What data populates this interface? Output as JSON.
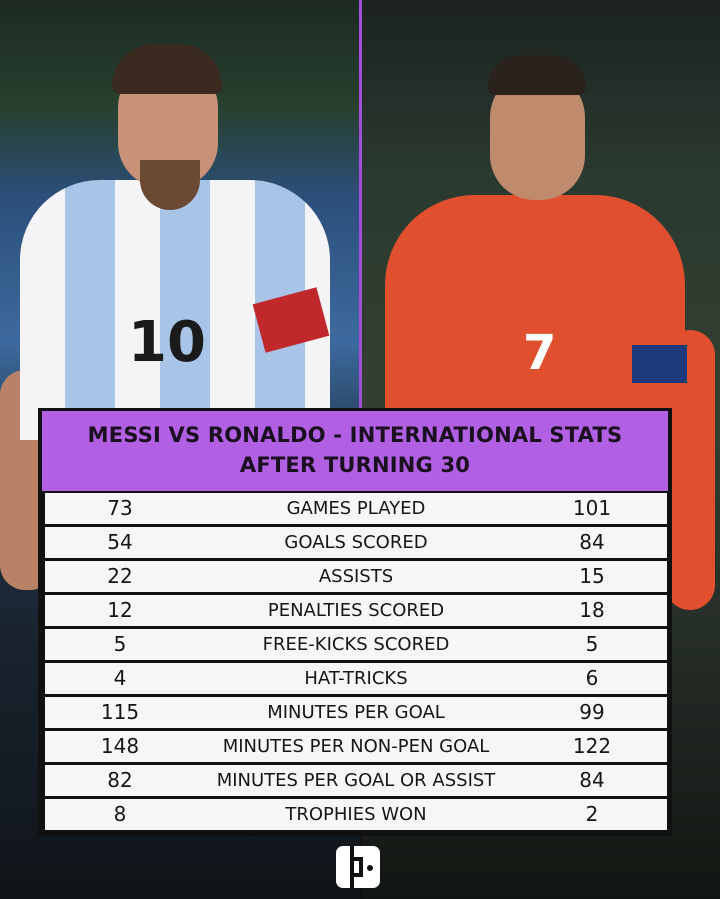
{
  "title_line1": "MESSI VS RONALDO - INTERNATIONAL STATS",
  "title_line2": "AFTER TURNING 30",
  "jerseys": {
    "messi_number": "10",
    "ronaldo_number": "7"
  },
  "colors": {
    "header": "#b15fe3",
    "divider": "#a24fd8",
    "row": "#f6f6f6"
  },
  "rows": [
    {
      "messi": "73",
      "label": "GAMES PLAYED",
      "ronaldo": "101"
    },
    {
      "messi": "54",
      "label": "GOALS SCORED",
      "ronaldo": "84"
    },
    {
      "messi": "22",
      "label": "ASSISTS",
      "ronaldo": "15"
    },
    {
      "messi": "12",
      "label": "PENALTIES SCORED",
      "ronaldo": "18"
    },
    {
      "messi": "5",
      "label": "FREE-KICKS SCORED",
      "ronaldo": "5"
    },
    {
      "messi": "4",
      "label": "HAT-TRICKS",
      "ronaldo": "6"
    },
    {
      "messi": "115",
      "label": "MINUTES PER GOAL",
      "ronaldo": "99"
    },
    {
      "messi": "148",
      "label": "MINUTES PER NON-PEN GOAL",
      "ronaldo": "122"
    },
    {
      "messi": "82",
      "label": "MINUTES PER GOAL OR ASSIST",
      "ronaldo": "84"
    },
    {
      "messi": "8",
      "label": "TROPHIES WON",
      "ronaldo": "2"
    }
  ],
  "logo_icon": "brand-logo-icon"
}
